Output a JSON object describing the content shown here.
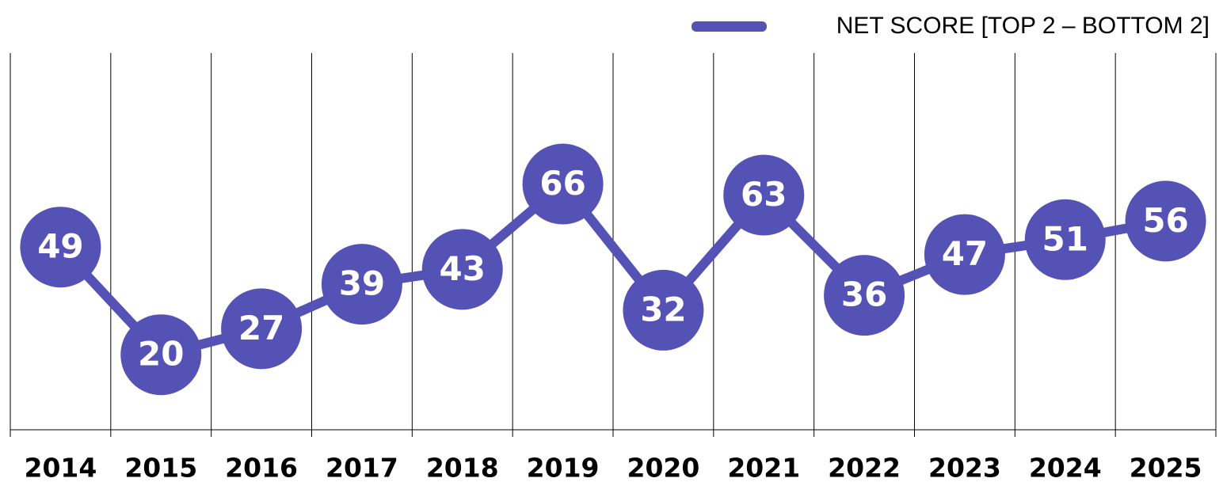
{
  "chart_data": {
    "type": "line",
    "categories": [
      "2014",
      "2015",
      "2016",
      "2017",
      "2018",
      "2019",
      "2020",
      "2021",
      "2022",
      "2023",
      "2024",
      "2025"
    ],
    "series": [
      {
        "name": "NET SCORE [TOP 2 – BOTTOM 2]",
        "color": "#5552b6",
        "values": [
          49,
          20,
          27,
          39,
          43,
          66,
          32,
          63,
          36,
          47,
          51,
          56
        ]
      }
    ],
    "ylim": [
      0,
      100
    ],
    "legend": "top-right"
  }
}
